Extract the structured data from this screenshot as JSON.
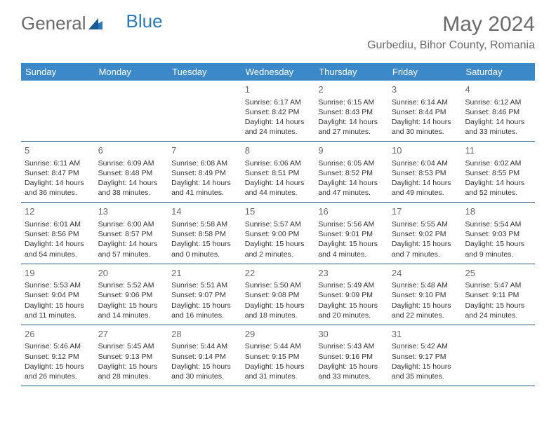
{
  "logo": {
    "text_a": "General",
    "text_b": "Blue"
  },
  "title": "May 2024",
  "location": "Gurbediu, Bihor County, Romania",
  "colors": {
    "header_bg": "#3b89c9",
    "header_text": "#ffffff",
    "border": "#2a5a8a",
    "logo_gray": "#6a6a6a",
    "logo_blue": "#2878bd",
    "text": "#333333"
  },
  "day_names": [
    "Sunday",
    "Monday",
    "Tuesday",
    "Wednesday",
    "Thursday",
    "Friday",
    "Saturday"
  ],
  "weeks": [
    [
      null,
      null,
      null,
      {
        "n": "1",
        "sr": "Sunrise: 6:17 AM",
        "ss": "Sunset: 8:42 PM",
        "d1": "Daylight: 14 hours",
        "d2": "and 24 minutes."
      },
      {
        "n": "2",
        "sr": "Sunrise: 6:15 AM",
        "ss": "Sunset: 8:43 PM",
        "d1": "Daylight: 14 hours",
        "d2": "and 27 minutes."
      },
      {
        "n": "3",
        "sr": "Sunrise: 6:14 AM",
        "ss": "Sunset: 8:44 PM",
        "d1": "Daylight: 14 hours",
        "d2": "and 30 minutes."
      },
      {
        "n": "4",
        "sr": "Sunrise: 6:12 AM",
        "ss": "Sunset: 8:46 PM",
        "d1": "Daylight: 14 hours",
        "d2": "and 33 minutes."
      }
    ],
    [
      {
        "n": "5",
        "sr": "Sunrise: 6:11 AM",
        "ss": "Sunset: 8:47 PM",
        "d1": "Daylight: 14 hours",
        "d2": "and 36 minutes."
      },
      {
        "n": "6",
        "sr": "Sunrise: 6:09 AM",
        "ss": "Sunset: 8:48 PM",
        "d1": "Daylight: 14 hours",
        "d2": "and 38 minutes."
      },
      {
        "n": "7",
        "sr": "Sunrise: 6:08 AM",
        "ss": "Sunset: 8:49 PM",
        "d1": "Daylight: 14 hours",
        "d2": "and 41 minutes."
      },
      {
        "n": "8",
        "sr": "Sunrise: 6:06 AM",
        "ss": "Sunset: 8:51 PM",
        "d1": "Daylight: 14 hours",
        "d2": "and 44 minutes."
      },
      {
        "n": "9",
        "sr": "Sunrise: 6:05 AM",
        "ss": "Sunset: 8:52 PM",
        "d1": "Daylight: 14 hours",
        "d2": "and 47 minutes."
      },
      {
        "n": "10",
        "sr": "Sunrise: 6:04 AM",
        "ss": "Sunset: 8:53 PM",
        "d1": "Daylight: 14 hours",
        "d2": "and 49 minutes."
      },
      {
        "n": "11",
        "sr": "Sunrise: 6:02 AM",
        "ss": "Sunset: 8:55 PM",
        "d1": "Daylight: 14 hours",
        "d2": "and 52 minutes."
      }
    ],
    [
      {
        "n": "12",
        "sr": "Sunrise: 6:01 AM",
        "ss": "Sunset: 8:56 PM",
        "d1": "Daylight: 14 hours",
        "d2": "and 54 minutes."
      },
      {
        "n": "13",
        "sr": "Sunrise: 6:00 AM",
        "ss": "Sunset: 8:57 PM",
        "d1": "Daylight: 14 hours",
        "d2": "and 57 minutes."
      },
      {
        "n": "14",
        "sr": "Sunrise: 5:58 AM",
        "ss": "Sunset: 8:58 PM",
        "d1": "Daylight: 15 hours",
        "d2": "and 0 minutes."
      },
      {
        "n": "15",
        "sr": "Sunrise: 5:57 AM",
        "ss": "Sunset: 9:00 PM",
        "d1": "Daylight: 15 hours",
        "d2": "and 2 minutes."
      },
      {
        "n": "16",
        "sr": "Sunrise: 5:56 AM",
        "ss": "Sunset: 9:01 PM",
        "d1": "Daylight: 15 hours",
        "d2": "and 4 minutes."
      },
      {
        "n": "17",
        "sr": "Sunrise: 5:55 AM",
        "ss": "Sunset: 9:02 PM",
        "d1": "Daylight: 15 hours",
        "d2": "and 7 minutes."
      },
      {
        "n": "18",
        "sr": "Sunrise: 5:54 AM",
        "ss": "Sunset: 9:03 PM",
        "d1": "Daylight: 15 hours",
        "d2": "and 9 minutes."
      }
    ],
    [
      {
        "n": "19",
        "sr": "Sunrise: 5:53 AM",
        "ss": "Sunset: 9:04 PM",
        "d1": "Daylight: 15 hours",
        "d2": "and 11 minutes."
      },
      {
        "n": "20",
        "sr": "Sunrise: 5:52 AM",
        "ss": "Sunset: 9:06 PM",
        "d1": "Daylight: 15 hours",
        "d2": "and 14 minutes."
      },
      {
        "n": "21",
        "sr": "Sunrise: 5:51 AM",
        "ss": "Sunset: 9:07 PM",
        "d1": "Daylight: 15 hours",
        "d2": "and 16 minutes."
      },
      {
        "n": "22",
        "sr": "Sunrise: 5:50 AM",
        "ss": "Sunset: 9:08 PM",
        "d1": "Daylight: 15 hours",
        "d2": "and 18 minutes."
      },
      {
        "n": "23",
        "sr": "Sunrise: 5:49 AM",
        "ss": "Sunset: 9:09 PM",
        "d1": "Daylight: 15 hours",
        "d2": "and 20 minutes."
      },
      {
        "n": "24",
        "sr": "Sunrise: 5:48 AM",
        "ss": "Sunset: 9:10 PM",
        "d1": "Daylight: 15 hours",
        "d2": "and 22 minutes."
      },
      {
        "n": "25",
        "sr": "Sunrise: 5:47 AM",
        "ss": "Sunset: 9:11 PM",
        "d1": "Daylight: 15 hours",
        "d2": "and 24 minutes."
      }
    ],
    [
      {
        "n": "26",
        "sr": "Sunrise: 5:46 AM",
        "ss": "Sunset: 9:12 PM",
        "d1": "Daylight: 15 hours",
        "d2": "and 26 minutes."
      },
      {
        "n": "27",
        "sr": "Sunrise: 5:45 AM",
        "ss": "Sunset: 9:13 PM",
        "d1": "Daylight: 15 hours",
        "d2": "and 28 minutes."
      },
      {
        "n": "28",
        "sr": "Sunrise: 5:44 AM",
        "ss": "Sunset: 9:14 PM",
        "d1": "Daylight: 15 hours",
        "d2": "and 30 minutes."
      },
      {
        "n": "29",
        "sr": "Sunrise: 5:44 AM",
        "ss": "Sunset: 9:15 PM",
        "d1": "Daylight: 15 hours",
        "d2": "and 31 minutes."
      },
      {
        "n": "30",
        "sr": "Sunrise: 5:43 AM",
        "ss": "Sunset: 9:16 PM",
        "d1": "Daylight: 15 hours",
        "d2": "and 33 minutes."
      },
      {
        "n": "31",
        "sr": "Sunrise: 5:42 AM",
        "ss": "Sunset: 9:17 PM",
        "d1": "Daylight: 15 hours",
        "d2": "and 35 minutes."
      },
      null
    ]
  ]
}
